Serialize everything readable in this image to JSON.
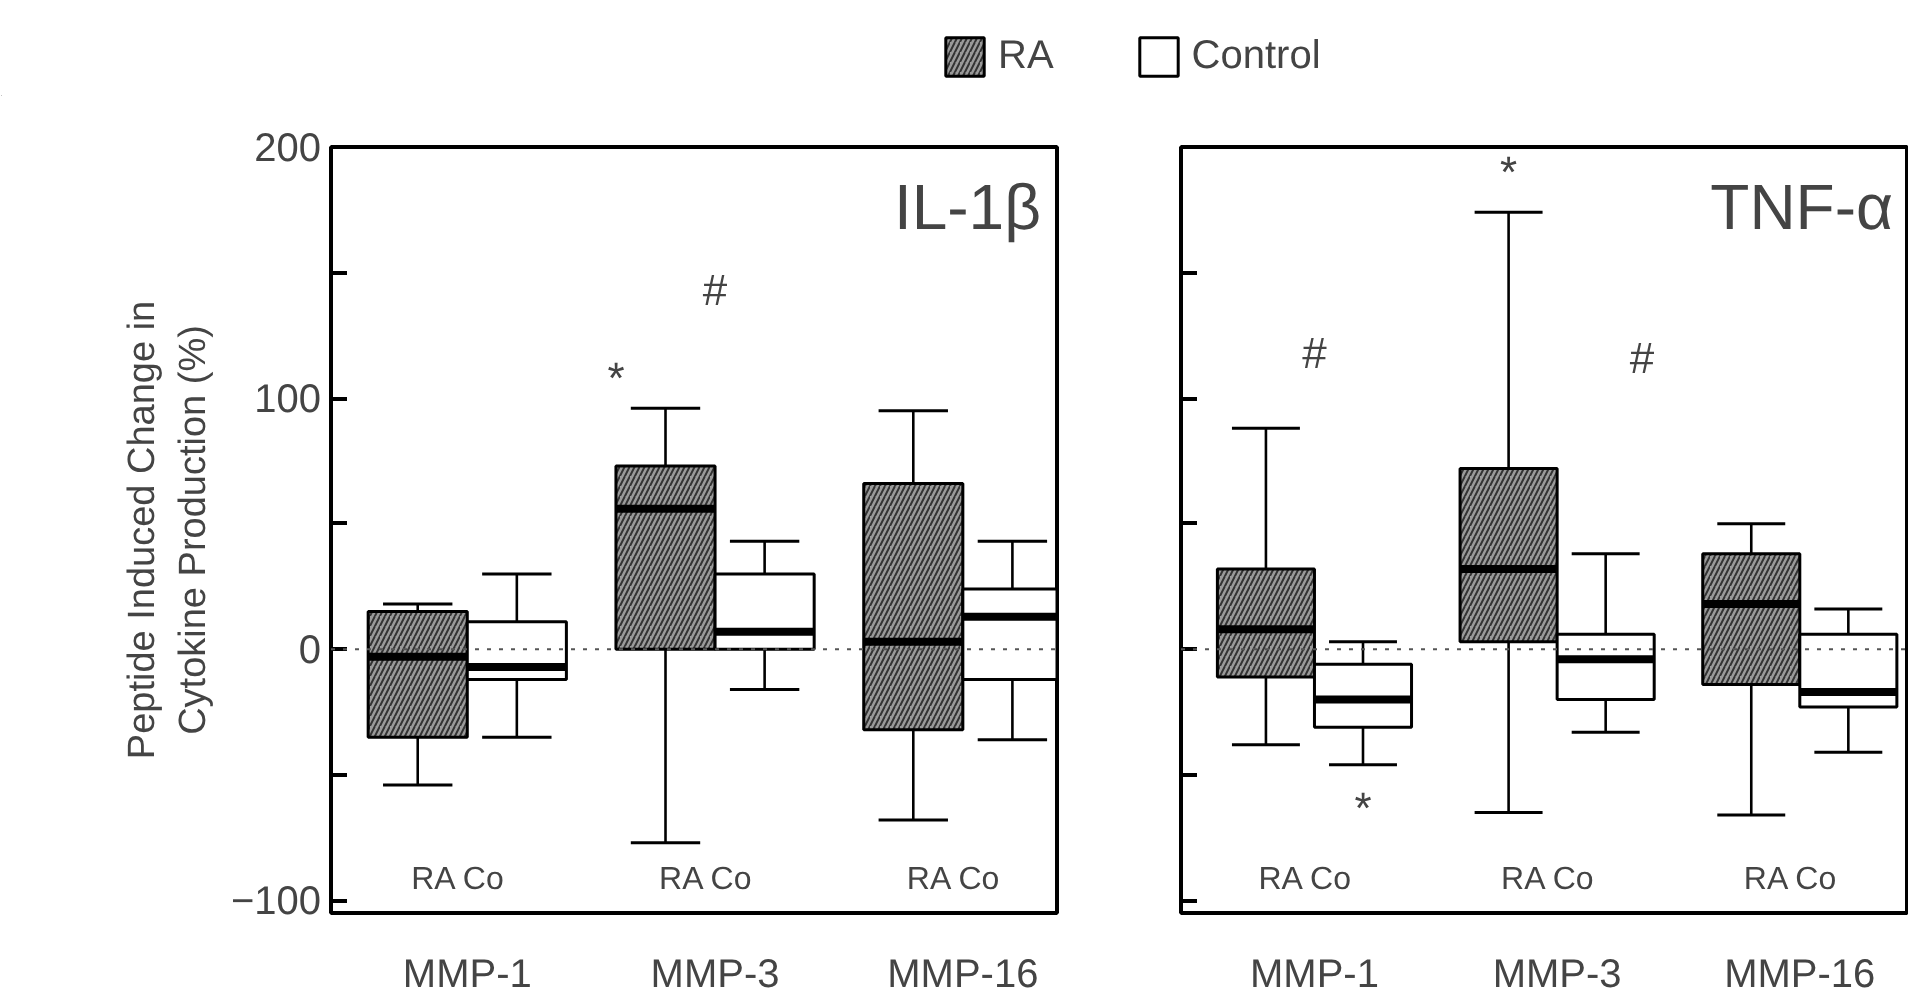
{
  "chart_data": [
    {
      "type": "box",
      "title": "IL-1β",
      "ylabel": "Peptide Induced Change in\nCytokine Production (%)",
      "categories": [
        "MMP-1",
        "MMP-3",
        "MMP-16"
      ],
      "series": [
        {
          "name": "RA",
          "color": "#9a9a9a",
          "boxes": [
            {
              "low": -54,
              "q1": -35,
              "median": -3,
              "q3": 15,
              "high": 18
            },
            {
              "low": -77,
              "q1": 0,
              "median": 56,
              "q3": 73,
              "high": 96
            },
            {
              "low": -68,
              "q1": -32,
              "median": 3,
              "q3": 66,
              "high": 95
            }
          ]
        },
        {
          "name": "Control",
          "color": "#ffffff",
          "boxes": [
            {
              "low": -35,
              "q1": -12,
              "median": -7,
              "q3": 11,
              "high": 30
            },
            {
              "low": -16,
              "q1": 0,
              "median": 7,
              "q3": 30,
              "high": 43
            },
            {
              "low": -36,
              "q1": -12,
              "median": 13,
              "q3": 24,
              "high": 43
            }
          ]
        }
      ],
      "ylim": [
        -105,
        200
      ],
      "yticks": [
        {
          "value": -100,
          "label": "−100"
        },
        {
          "value": -50,
          "label": null
        },
        0,
        {
          "value": 50,
          "label": null
        },
        100,
        {
          "value": 150,
          "label": null
        },
        200
      ],
      "ref_lines": [
        {
          "axis": "y",
          "value": 0,
          "line_style": "dotted"
        }
      ],
      "legend": "top",
      "annotations": [
        "*",
        "#",
        "RA   Co",
        "RA   Co",
        "RA   Co"
      ]
    },
    {
      "type": "box",
      "title": "TNF-α",
      "categories": [
        "MMP-1",
        "MMP-3",
        "MMP-16"
      ],
      "series": [
        {
          "color": "#9a9a9a",
          "boxes": [
            {
              "low": -38,
              "q1": -11,
              "median": 8,
              "q3": 32,
              "high": 88
            },
            {
              "low": -65,
              "q1": 3,
              "median": 32,
              "q3": 72,
              "high": 174
            },
            {
              "low": -66,
              "q1": -14,
              "median": 18,
              "q3": 38,
              "high": 50
            }
          ]
        },
        {
          "color": "#ffffff",
          "boxes": [
            {
              "low": -46,
              "q1": -31,
              "median": -20,
              "q3": -6,
              "high": 3
            },
            {
              "low": -33,
              "q1": -20,
              "median": -4,
              "q3": 6,
              "high": 38
            },
            {
              "low": -41,
              "q1": -23,
              "median": -17,
              "q3": 6,
              "high": 16
            }
          ]
        }
      ],
      "ylim": [
        -105,
        200
      ],
      "yticks": [
        -100,
        -50,
        0,
        50,
        100,
        150,
        200
      ],
      "tick_labels": "x",
      "ref_lines": [
        {
          "axis": "y",
          "value": 0,
          "line_style": "dotted"
        }
      ],
      "annotations": [
        "*",
        "#",
        "*",
        "#",
        "RA   Co",
        "RA   Co",
        "RA   Co"
      ]
    }
  ]
}
